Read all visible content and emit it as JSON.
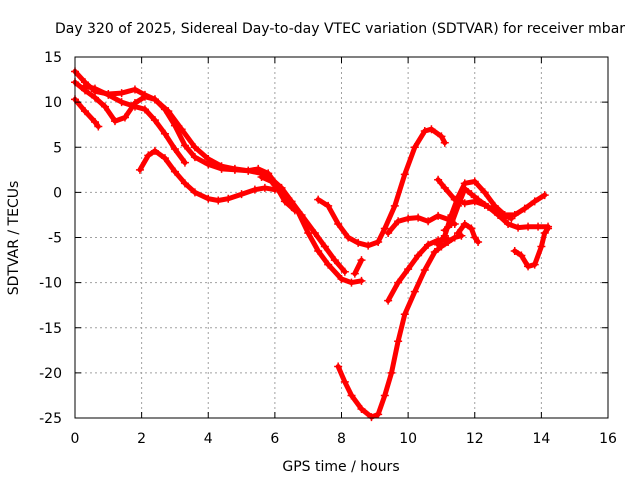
{
  "chart_data": {
    "type": "line",
    "title": "Day 320 of 2025, Sidereal Day-to-day VTEC variation (SDTVAR) for receiver mbar",
    "xlabel": "GPS time / hours",
    "ylabel": "SDTVAR / TECUs",
    "xlim": [
      0,
      16
    ],
    "ylim": [
      -25,
      15
    ],
    "xticks": [
      0,
      2,
      4,
      6,
      8,
      10,
      12,
      14,
      16
    ],
    "yticks": [
      -25,
      -20,
      -15,
      -10,
      -5,
      0,
      5,
      10,
      15
    ],
    "xtick_labels": [
      "0",
      "2",
      "4",
      "6",
      "8",
      "10",
      "12",
      "14",
      "16"
    ],
    "ytick_labels": [
      "-25",
      "-20",
      "-15",
      "-10",
      "-5",
      "0",
      "5",
      "10",
      "15"
    ],
    "grid": true,
    "legend": "none",
    "color": "#ff0000",
    "marker": "plus",
    "series": [
      {
        "points": [
          [
            0.0,
            13.4
          ],
          [
            0.3,
            12.2
          ],
          [
            0.6,
            11.2
          ],
          [
            1.0,
            10.9
          ],
          [
            1.4,
            11.0
          ],
          [
            1.8,
            11.4
          ],
          [
            2.1,
            10.8
          ],
          [
            2.4,
            10.3
          ],
          [
            2.8,
            9.0
          ],
          [
            3.2,
            7.0
          ],
          [
            3.6,
            5.0
          ],
          [
            4.0,
            3.7
          ],
          [
            4.4,
            2.9
          ],
          [
            4.8,
            2.6
          ],
          [
            5.2,
            2.4
          ],
          [
            5.6,
            2.1
          ],
          [
            5.9,
            1.5
          ],
          [
            6.2,
            0.5
          ],
          [
            6.5,
            -1.0
          ],
          [
            6.8,
            -2.5
          ],
          [
            7.2,
            -4.5
          ],
          [
            7.5,
            -6.0
          ],
          [
            7.8,
            -7.5
          ],
          [
            8.1,
            -8.8
          ]
        ]
      },
      {
        "points": [
          [
            0.0,
            12.2
          ],
          [
            0.3,
            11.3
          ],
          [
            0.6,
            10.5
          ],
          [
            0.9,
            9.5
          ],
          [
            1.2,
            7.9
          ],
          [
            1.5,
            8.3
          ],
          [
            1.8,
            9.9
          ],
          [
            2.1,
            10.6
          ],
          [
            2.4,
            10.3
          ],
          [
            2.7,
            9.2
          ],
          [
            3.0,
            7.4
          ],
          [
            3.3,
            5.2
          ],
          [
            3.6,
            3.9
          ],
          [
            4.0,
            3.1
          ],
          [
            4.4,
            2.6
          ],
          [
            4.8,
            2.5
          ],
          [
            5.2,
            2.4
          ],
          [
            5.5,
            2.6
          ],
          [
            5.8,
            2.1
          ],
          [
            6.1,
            0.6
          ],
          [
            6.4,
            -1.0
          ],
          [
            6.7,
            -2.2
          ],
          [
            7.0,
            -4.5
          ],
          [
            7.3,
            -6.5
          ],
          [
            7.6,
            -8.0
          ],
          [
            8.0,
            -9.6
          ],
          [
            8.3,
            -10.0
          ],
          [
            8.6,
            -9.8
          ]
        ]
      },
      {
        "points": [
          [
            0.0,
            10.3
          ],
          [
            0.3,
            9.0
          ],
          [
            0.6,
            7.8
          ],
          [
            0.7,
            7.3
          ]
        ]
      },
      {
        "points": [
          [
            0.3,
            11.8
          ],
          [
            0.6,
            11.5
          ],
          [
            1.0,
            10.8
          ],
          [
            1.4,
            10.0
          ],
          [
            1.8,
            9.5
          ],
          [
            2.1,
            9.2
          ],
          [
            2.4,
            8.0
          ],
          [
            2.7,
            6.5
          ],
          [
            3.0,
            4.8
          ],
          [
            3.3,
            3.3
          ]
        ]
      },
      {
        "points": [
          [
            1.95,
            2.5
          ],
          [
            2.2,
            4.1
          ],
          [
            2.4,
            4.6
          ],
          [
            2.7,
            3.8
          ],
          [
            3.0,
            2.3
          ],
          [
            3.3,
            1.0
          ],
          [
            3.6,
            0.0
          ],
          [
            4.0,
            -0.7
          ],
          [
            4.3,
            -0.9
          ],
          [
            4.6,
            -0.7
          ],
          [
            5.0,
            -0.2
          ],
          [
            5.4,
            0.3
          ],
          [
            5.7,
            0.5
          ],
          [
            6.0,
            0.3
          ]
        ]
      },
      {
        "points": [
          [
            5.6,
            1.7
          ],
          [
            5.9,
            1.2
          ],
          [
            6.1,
            0.3
          ],
          [
            6.3,
            -1.0
          ],
          [
            6.6,
            -2.0
          ]
        ]
      },
      {
        "points": [
          [
            7.3,
            -0.8
          ],
          [
            7.6,
            -1.5
          ],
          [
            7.9,
            -3.5
          ],
          [
            8.2,
            -5.0
          ],
          [
            8.5,
            -5.6
          ],
          [
            8.8,
            -5.9
          ],
          [
            9.1,
            -5.5
          ],
          [
            9.3,
            -4.0
          ],
          [
            9.6,
            -1.5
          ],
          [
            9.9,
            2.0
          ],
          [
            10.2,
            5.0
          ],
          [
            10.5,
            6.8
          ],
          [
            10.7,
            7.0
          ],
          [
            11.0,
            6.2
          ],
          [
            11.1,
            5.5
          ]
        ]
      },
      {
        "points": [
          [
            7.9,
            -19.3
          ],
          [
            8.1,
            -21.0
          ],
          [
            8.3,
            -22.5
          ],
          [
            8.6,
            -24.0
          ],
          [
            8.9,
            -24.9
          ],
          [
            9.1,
            -24.6
          ],
          [
            9.3,
            -22.5
          ],
          [
            9.5,
            -20.0
          ],
          [
            9.7,
            -16.5
          ],
          [
            9.9,
            -13.5
          ],
          [
            10.2,
            -11.0
          ],
          [
            10.5,
            -8.6
          ],
          [
            10.8,
            -6.6
          ],
          [
            11.0,
            -6.0
          ],
          [
            11.2,
            -5.5
          ],
          [
            11.4,
            -5.0
          ],
          [
            11.6,
            -4.8
          ]
        ]
      },
      {
        "points": [
          [
            8.4,
            -9.0
          ],
          [
            8.6,
            -7.5
          ]
        ]
      },
      {
        "points": [
          [
            9.4,
            -12.0
          ],
          [
            9.7,
            -10.0
          ],
          [
            10.0,
            -8.5
          ],
          [
            10.3,
            -7.0
          ],
          [
            10.6,
            -5.8
          ],
          [
            10.9,
            -5.3
          ],
          [
            11.2,
            -5.2
          ]
        ]
      },
      {
        "points": [
          [
            9.4,
            -4.5
          ],
          [
            9.7,
            -3.2
          ],
          [
            10.0,
            -2.9
          ],
          [
            10.3,
            -2.8
          ],
          [
            10.6,
            -3.2
          ],
          [
            10.9,
            -2.6
          ],
          [
            11.2,
            -3.0
          ],
          [
            11.4,
            -3.5
          ]
        ]
      },
      {
        "points": [
          [
            10.9,
            -5.8
          ],
          [
            11.1,
            -4.8
          ],
          [
            11.3,
            -2.5
          ],
          [
            11.5,
            -0.5
          ],
          [
            11.7,
            1.0
          ],
          [
            12.0,
            1.2
          ],
          [
            12.3,
            0.0
          ],
          [
            12.6,
            -1.5
          ],
          [
            12.9,
            -2.5
          ],
          [
            13.2,
            -2.5
          ],
          [
            13.5,
            -1.8
          ],
          [
            13.8,
            -1.0
          ],
          [
            14.1,
            -0.3
          ]
        ]
      },
      {
        "points": [
          [
            10.9,
            1.4
          ],
          [
            11.1,
            0.5
          ],
          [
            11.4,
            -0.8
          ],
          [
            11.7,
            -1.2
          ],
          [
            12.0,
            -1.0
          ],
          [
            12.3,
            -1.4
          ],
          [
            12.6,
            -2.0
          ],
          [
            12.9,
            -2.6
          ],
          [
            13.1,
            -2.9
          ]
        ]
      },
      {
        "points": [
          [
            11.1,
            -4.2
          ],
          [
            11.3,
            -3.5
          ],
          [
            11.5,
            -1.5
          ],
          [
            11.7,
            0.4
          ],
          [
            11.9,
            -0.2
          ],
          [
            12.1,
            -0.8
          ],
          [
            12.4,
            -1.6
          ],
          [
            12.7,
            -2.5
          ],
          [
            13.0,
            -3.5
          ],
          [
            13.3,
            -3.9
          ],
          [
            13.6,
            -3.8
          ],
          [
            13.9,
            -3.8
          ],
          [
            14.2,
            -3.8
          ]
        ]
      },
      {
        "points": [
          [
            11.5,
            -4.5
          ],
          [
            11.7,
            -3.5
          ],
          [
            11.9,
            -4.0
          ],
          [
            12.0,
            -5.0
          ],
          [
            12.1,
            -5.5
          ]
        ]
      },
      {
        "points": [
          [
            13.2,
            -6.5
          ],
          [
            13.4,
            -7.0
          ],
          [
            13.6,
            -8.2
          ],
          [
            13.8,
            -8.0
          ],
          [
            14.0,
            -6.0
          ],
          [
            14.1,
            -4.5
          ],
          [
            14.2,
            -4.0
          ]
        ]
      }
    ]
  }
}
